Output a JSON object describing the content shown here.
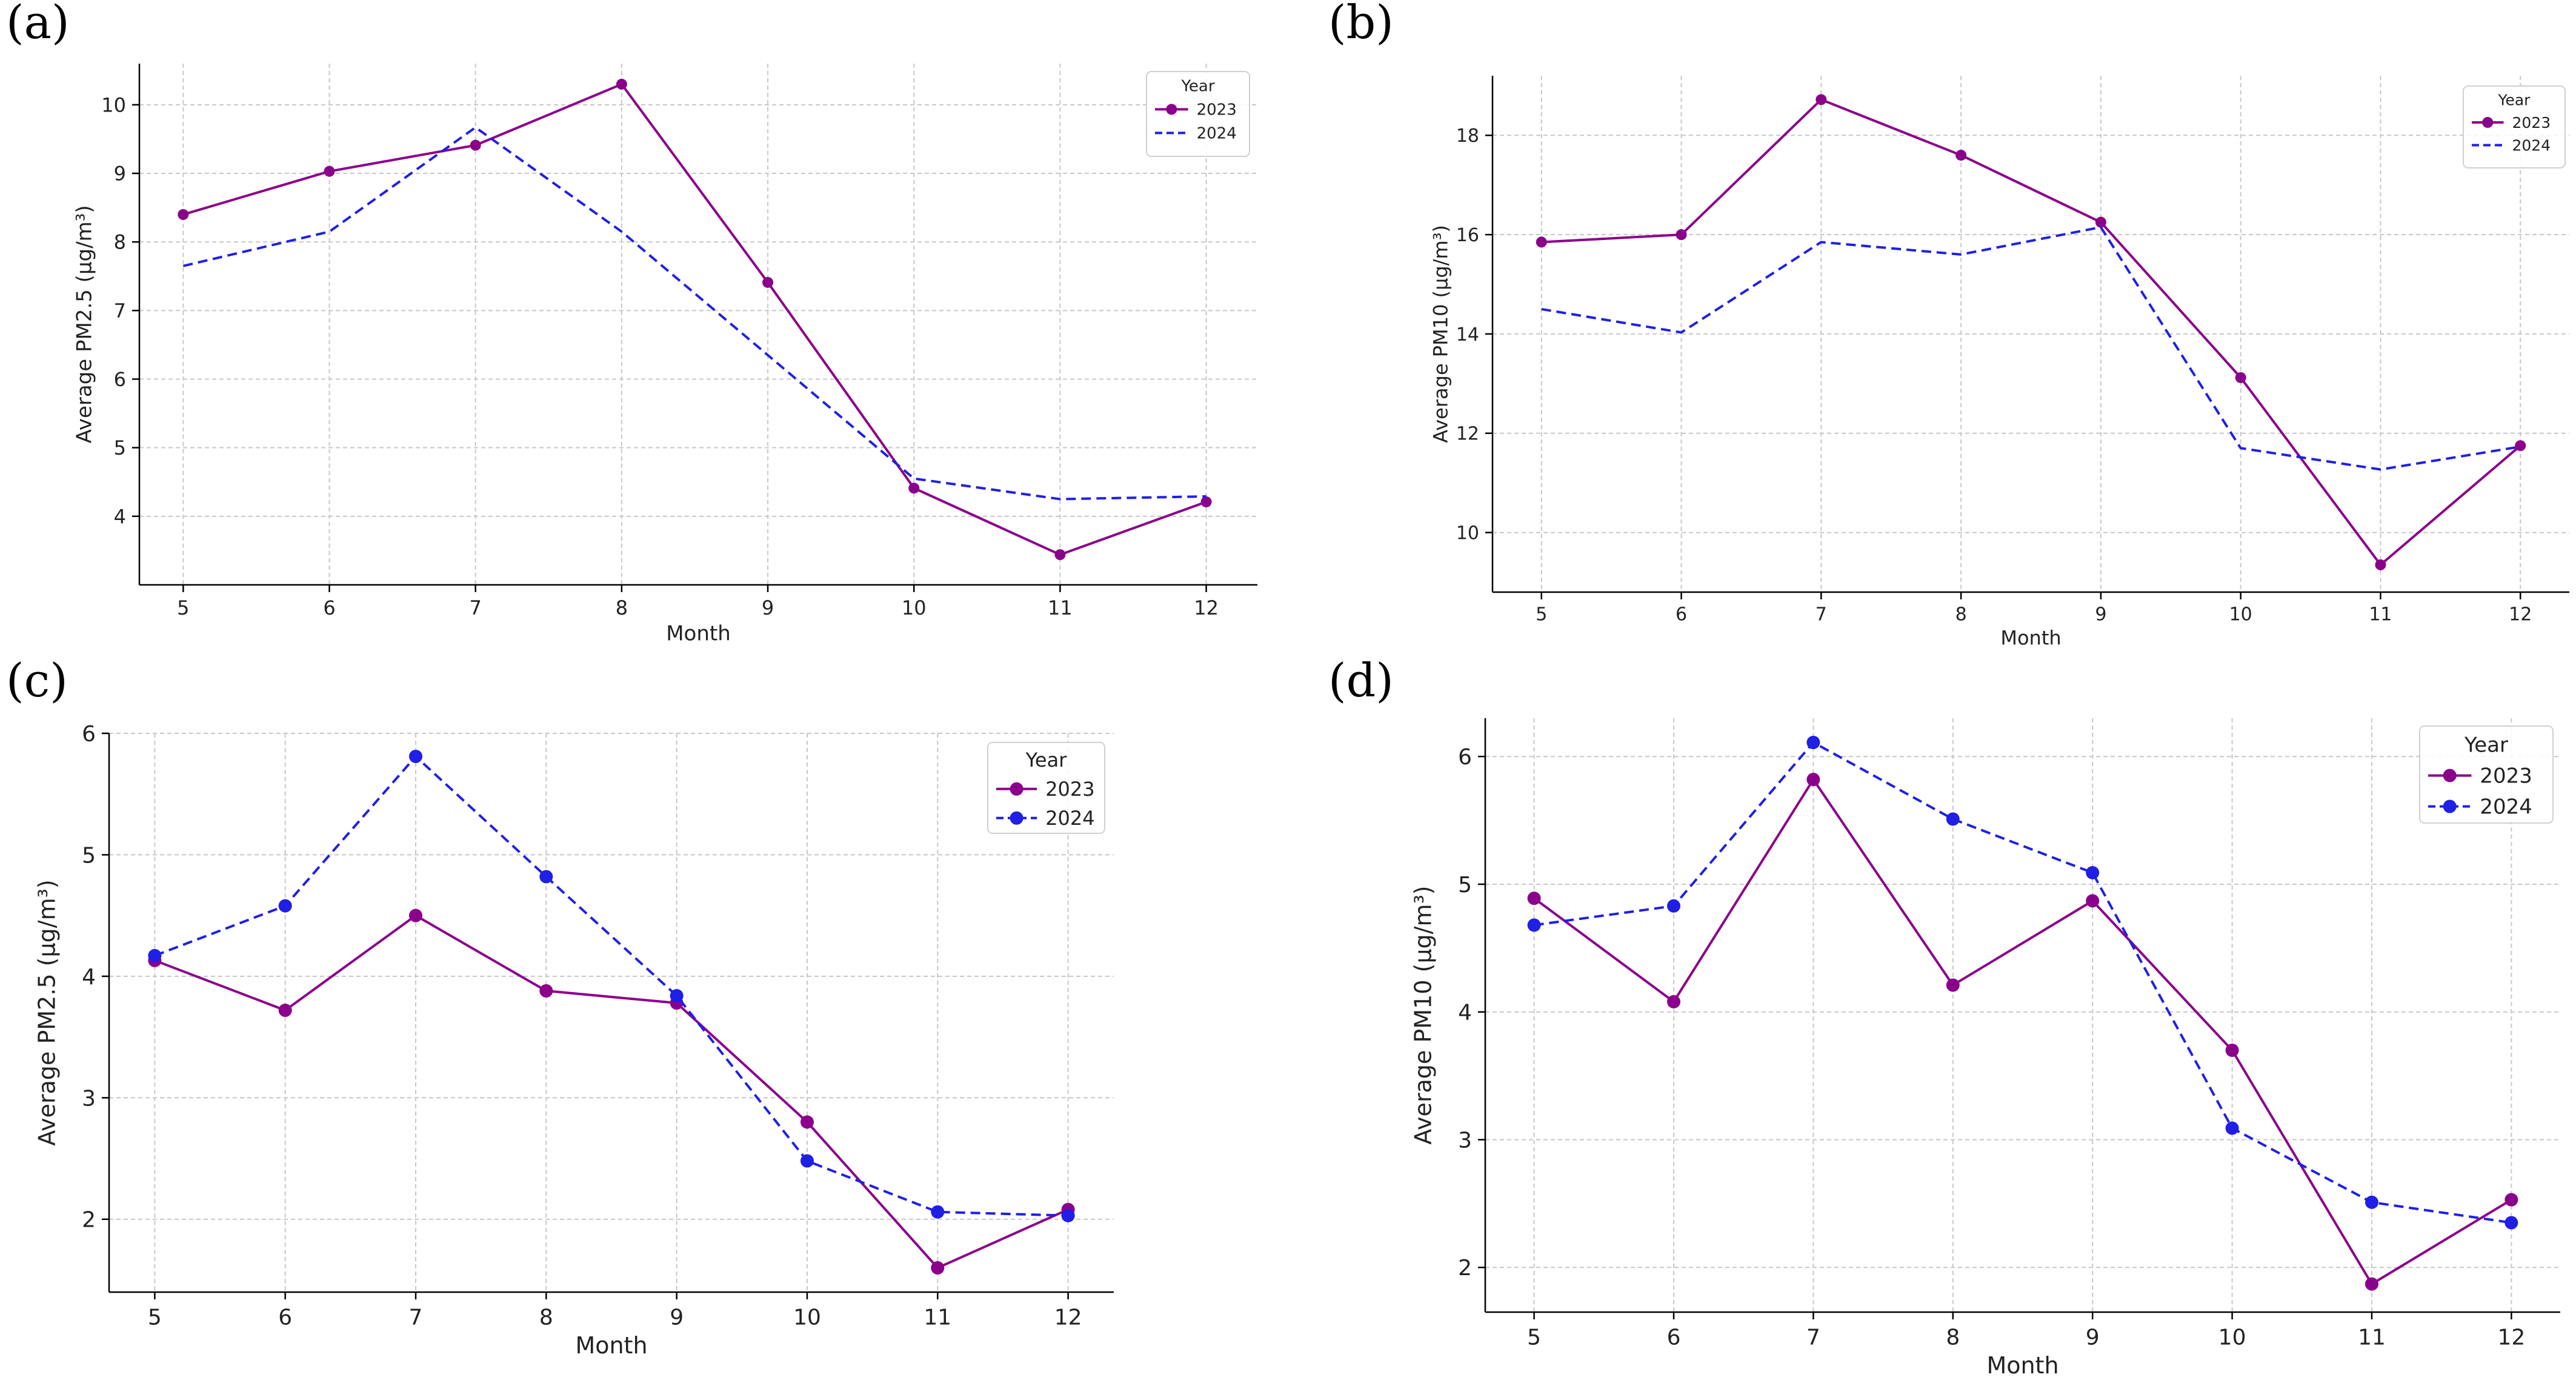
{
  "colors": {
    "series_2023": "#8b008b",
    "series_2024": "#1f1fe6",
    "grid": "#c8c8c8"
  },
  "chart_data": [
    {
      "id": "a",
      "panel_label": "(a)",
      "type": "line",
      "xlabel": "Month",
      "ylabel": "Average PM2.5 (µg/m³)",
      "x": [
        5,
        6,
        7,
        8,
        9,
        10,
        11,
        12
      ],
      "xlim": [
        4.7,
        12.35
      ],
      "ylim": [
        3.0,
        10.6
      ],
      "yticks": [
        4,
        5,
        6,
        7,
        8,
        9,
        10
      ],
      "grid": true,
      "legend": {
        "title": "Year",
        "placement": "top-right"
      },
      "series": [
        {
          "name": "2023",
          "style": "solid",
          "markers": true,
          "values": [
            8.4,
            9.03,
            9.41,
            10.3,
            7.41,
            4.41,
            3.44,
            4.21
          ]
        },
        {
          "name": "2024",
          "style": "dashed",
          "markers": false,
          "values": [
            7.65,
            8.15,
            9.67,
            8.15,
            6.35,
            4.55,
            4.25,
            4.29
          ]
        }
      ]
    },
    {
      "id": "b",
      "panel_label": "(b)",
      "type": "line",
      "xlabel": "Month",
      "ylabel": "Average PM10 (µg/m³)",
      "x": [
        5,
        6,
        7,
        8,
        9,
        10,
        11,
        12
      ],
      "xlim": [
        4.65,
        12.35
      ],
      "ylim": [
        8.8,
        19.2
      ],
      "yticks": [
        10,
        12,
        14,
        16,
        18
      ],
      "grid": true,
      "legend": {
        "title": "Year",
        "placement": "top-right"
      },
      "series": [
        {
          "name": "2023",
          "style": "solid",
          "markers": true,
          "values": [
            15.85,
            16.0,
            18.72,
            17.6,
            16.25,
            13.12,
            9.35,
            11.75
          ]
        },
        {
          "name": "2024",
          "style": "dashed",
          "markers": false,
          "values": [
            14.5,
            14.03,
            15.85,
            15.6,
            16.15,
            11.7,
            11.27,
            11.73
          ]
        }
      ]
    },
    {
      "id": "c",
      "panel_label": "(c)",
      "type": "line",
      "xlabel": "Month",
      "ylabel": "Average PM2.5 (µg/m³)",
      "x": [
        5,
        6,
        7,
        8,
        9,
        10,
        11,
        12
      ],
      "xlim": [
        4.65,
        12.35
      ],
      "ylim": [
        1.4,
        6.0
      ],
      "yticks": [
        2,
        3,
        4,
        5,
        6
      ],
      "grid": true,
      "legend": {
        "title": "Year",
        "placement": "top-right"
      },
      "series": [
        {
          "name": "2023",
          "style": "solid",
          "markers": true,
          "values": [
            4.13,
            3.72,
            4.5,
            3.88,
            3.78,
            2.8,
            1.6,
            2.08
          ]
        },
        {
          "name": "2024",
          "style": "dashed",
          "markers": true,
          "values": [
            4.17,
            4.58,
            5.81,
            4.82,
            3.84,
            2.48,
            2.06,
            2.03
          ]
        }
      ]
    },
    {
      "id": "d",
      "panel_label": "(d)",
      "type": "line",
      "xlabel": "Month",
      "ylabel": "Average PM10 (µg/m³)",
      "x": [
        5,
        6,
        7,
        8,
        9,
        10,
        11,
        12
      ],
      "xlim": [
        4.65,
        12.35
      ],
      "ylim": [
        1.65,
        6.3
      ],
      "yticks": [
        2,
        3,
        4,
        5,
        6
      ],
      "grid": true,
      "legend": {
        "title": "Year",
        "placement": "top-right"
      },
      "series": [
        {
          "name": "2023",
          "style": "solid",
          "markers": true,
          "values": [
            4.89,
            4.08,
            5.82,
            4.21,
            4.87,
            3.7,
            1.87,
            2.53
          ]
        },
        {
          "name": "2024",
          "style": "dashed",
          "markers": true,
          "values": [
            4.68,
            4.83,
            6.11,
            5.51,
            5.09,
            3.09,
            2.51,
            2.35
          ]
        }
      ]
    }
  ]
}
